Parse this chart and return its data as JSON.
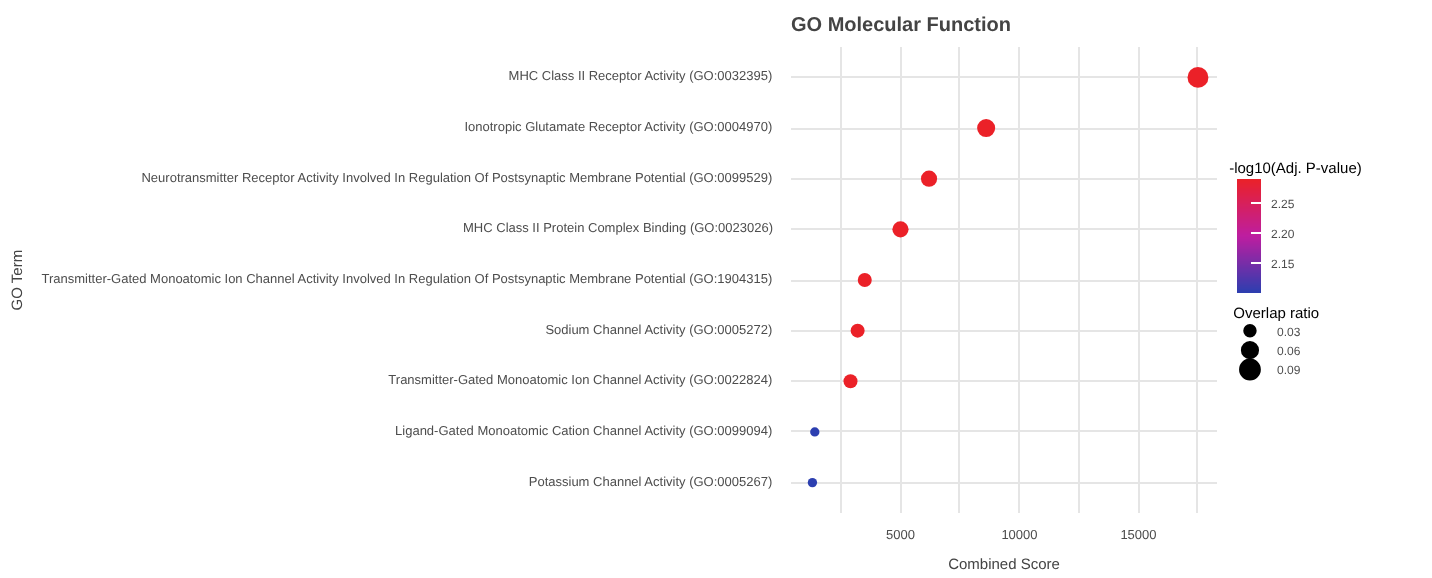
{
  "chart_data": {
    "type": "scatter",
    "title": "GO Molecular Function",
    "xlabel": "Combined Score",
    "ylabel": "GO Term",
    "clabel": "-log10(Adj. P-value)",
    "legend_title": "Overlap ratio",
    "categories": [
      "MHC Class II Receptor Activity (GO:0032395)",
      "Ionotropic Glutamate Receptor Activity (GO:0004970)",
      "Neurotransmitter Receptor Activity Involved In Regulation Of Postsynaptic Membrane Potential (GO:0099529)",
      "MHC Class II Protein Complex Binding (GO:0023026)",
      "Transmitter-Gated Monoatomic Ion Channel Activity Involved In Regulation Of Postsynaptic Membrane Potential (GO:1904315)",
      "Sodium Channel Activity (GO:0005272)",
      "Transmitter-Gated Monoatomic Ion Channel Activity (GO:0022824)",
      "Ligand-Gated Monoatomic Cation Channel Activity (GO:0099094)",
      "Potassium Channel Activity (GO:0005267)"
    ],
    "values": [
      17500,
      8600,
      6200,
      5000,
      3500,
      3200,
      2900,
      1400,
      1300
    ],
    "sizes": [
      0.1,
      0.075,
      0.06,
      0.06,
      0.045,
      0.045,
      0.045,
      0.02,
      0.02
    ],
    "size_legend": [
      0.03,
      0.06,
      0.09
    ],
    "cvalues": [
      2.29,
      2.29,
      2.29,
      2.29,
      2.29,
      2.29,
      2.29,
      2.1,
      2.1
    ],
    "clim": [
      2.1,
      2.29
    ],
    "cticks": [
      2.15,
      {
        "value": 2.2,
        "label": "2.20"
      },
      2.25
    ],
    "orientation": "horizontal",
    "xlim": [
      400,
      18300
    ],
    "xticks": [
      {
        "value": 2500,
        "label": null
      },
      5000,
      {
        "value": 7500,
        "label": null
      },
      10000,
      {
        "value": 12500,
        "label": null
      },
      15000,
      {
        "value": 17500,
        "label": null
      }
    ],
    "grid": true,
    "marker": "circle"
  }
}
